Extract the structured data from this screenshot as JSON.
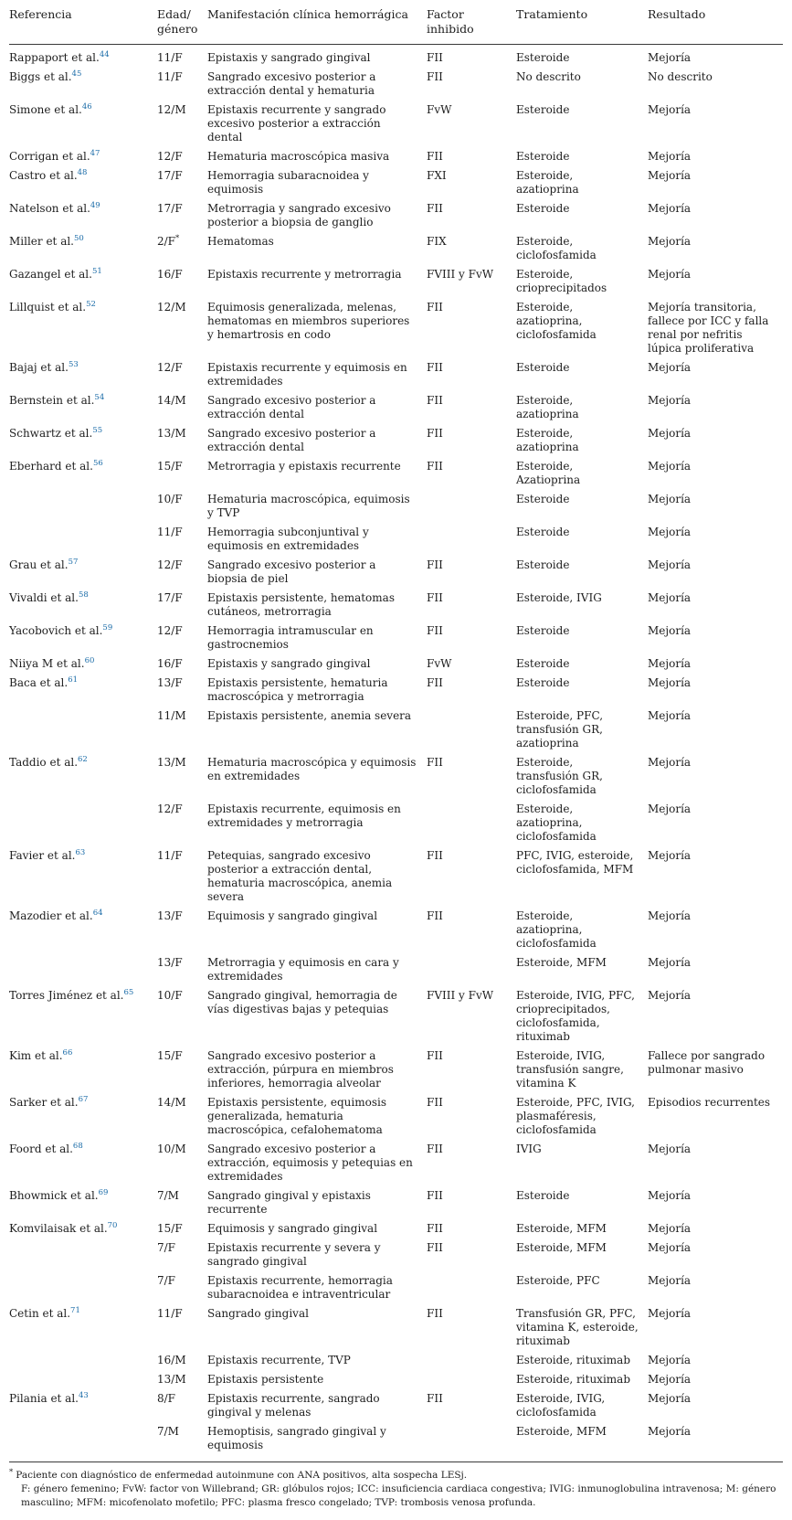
{
  "colors": {
    "citation": "#1b6ca8",
    "text": "#1d1d1d",
    "rule": "#3a3a3a",
    "background": "#ffffff"
  },
  "table": {
    "headers": [
      {
        "id": "referencia",
        "label": "Referencia"
      },
      {
        "id": "edad-genero",
        "label": "Edad/\ngénero"
      },
      {
        "id": "manifestacion",
        "label": "Manifestación clínica hemorrágica"
      },
      {
        "id": "factor-inhibido",
        "label": "Factor\ninhibido"
      },
      {
        "id": "tratamiento",
        "label": "Tratamiento"
      },
      {
        "id": "resultado",
        "label": "Resultado"
      }
    ],
    "rows": [
      {
        "ref": "Rappaport et al.",
        "sup": "44",
        "edad": "11/F",
        "manif": "Epistaxis y sangrado gingival",
        "factor": "FII",
        "trat": "Esteroide",
        "res": "Mejoría"
      },
      {
        "ref": "Biggs et al.",
        "sup": "45",
        "edad": "11/F",
        "manif": "Sangrado excesivo posterior a extracción dental y hematuria",
        "factor": "FII",
        "trat": "No descrito",
        "res": "No descrito"
      },
      {
        "ref": "Simone et al.",
        "sup": "46",
        "edad": "12/M",
        "manif": "Epistaxis recurrente y sangrado excesivo posterior a extracción dental",
        "factor": "FvW",
        "trat": "Esteroide",
        "res": "Mejoría"
      },
      {
        "ref": "Corrigan et al.",
        "sup": "47",
        "edad": "12/F",
        "manif": "Hematuria macroscópica masiva",
        "factor": "FII",
        "trat": "Esteroide",
        "res": "Mejoría"
      },
      {
        "ref": "Castro et al.",
        "sup": "48",
        "edad": "17/F",
        "manif": "Hemorragia subaracnoidea y equimosis",
        "factor": "FXI",
        "trat": "Esteroide, azatioprina",
        "res": "Mejoría"
      },
      {
        "ref": "Natelson et al.",
        "sup": "49",
        "edad": "17/F",
        "manif": "Metrorragia y sangrado excesivo posterior a biopsia de ganglio",
        "factor": "FII",
        "trat": "Esteroide",
        "res": "Mejoría"
      },
      {
        "ref": "Miller et al.",
        "sup": "50",
        "edad": "2/F",
        "edad_sup": "*",
        "manif": "Hematomas",
        "factor": "FIX",
        "trat": "Esteroide, ciclofosfamida",
        "res": "Mejoría"
      },
      {
        "ref": "Gazangel et al.",
        "sup": "51",
        "edad": "16/F",
        "manif": "Epistaxis recurrente y metrorragia",
        "factor": "FVIII y FvW",
        "trat": "Esteroide, crioprecipitados",
        "res": "Mejoría"
      },
      {
        "ref": "Lillquist et al.",
        "sup": "52",
        "edad": "12/M",
        "manif": "Equimosis generalizada, melenas, hematomas en miembros superiores y hemartrosis en codo",
        "factor": "FII",
        "trat": "Esteroide, azatioprina, ciclofosfamida",
        "res": "Mejoría transitoria, fallece por ICC y falla renal por nefritis lúpica proliferativa"
      },
      {
        "ref": "Bajaj et al.",
        "sup": "53",
        "edad": "12/F",
        "manif": "Epistaxis recurrente y equimosis en extremidades",
        "factor": "FII",
        "trat": "Esteroide",
        "res": "Mejoría"
      },
      {
        "ref": "Bernstein et al.",
        "sup": "54",
        "edad": "14/M",
        "manif": "Sangrado excesivo posterior a extracción dental",
        "factor": "FII",
        "trat": "Esteroide, azatioprina",
        "res": "Mejoría"
      },
      {
        "ref": "Schwartz et al.",
        "sup": "55",
        "edad": "13/M",
        "manif": "Sangrado excesivo posterior a extracción dental",
        "factor": "FII",
        "trat": "Esteroide, azatioprina",
        "res": "Mejoría"
      },
      {
        "ref": "Eberhard et al.",
        "sup": "56",
        "edad": "15/F",
        "manif": "Metrorragia y epistaxis recurrente",
        "factor": "FII",
        "trat": "Esteroide, Azatioprina",
        "res": "Mejoría"
      },
      {
        "edad": "10/F",
        "manif": "Hematuria macroscópica, equimosis y TVP",
        "trat": "Esteroide",
        "res": "Mejoría"
      },
      {
        "edad": "11/F",
        "manif": "Hemorragia subconjuntival y equimosis en extremidades",
        "trat": "Esteroide",
        "res": "Mejoría"
      },
      {
        "ref": "Grau et al.",
        "sup": "57",
        "edad": "12/F",
        "manif": "Sangrado excesivo posterior a biopsia de piel",
        "factor": "FII",
        "trat": "Esteroide",
        "res": "Mejoría"
      },
      {
        "ref": "Vivaldi et al.",
        "sup": "58",
        "edad": "17/F",
        "manif": "Epistaxis persistente, hematomas cutáneos, metrorragia",
        "factor": "FII",
        "trat": "Esteroide, IVIG",
        "res": "Mejoría"
      },
      {
        "ref": "Yacobovich et al.",
        "sup": "59",
        "edad": "12/F",
        "manif": "Hemorragia intramuscular en gastrocnemios",
        "factor": "FII",
        "trat": "Esteroide",
        "res": "Mejoría"
      },
      {
        "ref": "Niiya M et al.",
        "sup": "60",
        "edad": "16/F",
        "manif": "Epistaxis y sangrado gingival",
        "factor": "FvW",
        "trat": "Esteroide",
        "res": "Mejoría"
      },
      {
        "ref": "Baca et al.",
        "sup": "61",
        "edad": "13/F",
        "manif": "Epistaxis persistente, hematuria macroscópica y metrorragia",
        "factor": "FII",
        "trat": "Esteroide",
        "res": "Mejoría"
      },
      {
        "edad": "11/M",
        "manif": "Epistaxis persistente, anemia severa",
        "trat": "Esteroide, PFC, transfusión GR, azatioprina",
        "res": "Mejoría"
      },
      {
        "ref": "Taddio et al.",
        "sup": "62",
        "edad": "13/M",
        "manif": "Hematuria macroscópica y equimosis en extremidades",
        "factor": "FII",
        "trat": "Esteroide, transfusión GR, ciclofosfamida",
        "res": "Mejoría"
      },
      {
        "edad": "12/F",
        "manif": "Epistaxis recurrente, equimosis en extremidades y metrorragia",
        "trat": "Esteroide, azatioprina, ciclofosfamida",
        "res": "Mejoría"
      },
      {
        "ref": "Favier et al.",
        "sup": "63",
        "edad": "11/F",
        "manif": "Petequias, sangrado excesivo posterior a extracción dental, hematuria macroscópica, anemia severa",
        "factor": "FII",
        "trat": "PFC, IVIG, esteroide, ciclofosfamida, MFM",
        "res": "Mejoría"
      },
      {
        "ref": "Mazodier et al.",
        "sup": "64",
        "edad": "13/F",
        "manif": "Equimosis y sangrado gingival",
        "factor": "FII",
        "trat": "Esteroide, azatioprina, ciclofosfamida",
        "res": "Mejoría"
      },
      {
        "edad": "13/F",
        "manif": "Metrorragia y equimosis en cara y extremidades",
        "trat": "Esteroide, MFM",
        "res": "Mejoría"
      },
      {
        "ref": "Torres Jiménez et al.",
        "sup": "65",
        "edad": "10/F",
        "manif": "Sangrado gingival, hemorragia de vías digestivas bajas y petequias",
        "factor": "FVIII y FvW",
        "trat": "Esteroide, IVIG, PFC, crioprecipitados, ciclofosfamida, rituximab",
        "res": "Mejoría"
      },
      {
        "ref": "Kim et al.",
        "sup": "66",
        "edad": "15/F",
        "manif": "Sangrado excesivo posterior a extracción, púrpura en miembros inferiores, hemorragia alveolar",
        "factor": "FII",
        "trat": "Esteroide, IVIG, transfusión sangre, vitamina K",
        "res": "Fallece por sangrado pulmonar masivo"
      },
      {
        "ref": "Sarker et al.",
        "sup": "67",
        "edad": "14/M",
        "manif": "Epistaxis persistente, equimosis generalizada, hematuria macroscópica, cefalohematoma",
        "factor": "FII",
        "trat": "Esteroide, PFC, IVIG, plasmaféresis, ciclofosfamida",
        "res": "Episodios recurrentes"
      },
      {
        "ref": "Foord et al.",
        "sup": "68",
        "edad": "10/M",
        "manif": "Sangrado excesivo posterior a extracción, equimosis y petequias en extremidades",
        "factor": "FII",
        "trat": "IVIG",
        "res": "Mejoría"
      },
      {
        "ref": "Bhowmick et al.",
        "sup": "69",
        "edad": "7/M",
        "manif": "Sangrado gingival y epistaxis recurrente",
        "factor": "FII",
        "trat": "Esteroide",
        "res": "Mejoría"
      },
      {
        "ref": "Komvilaisak et al.",
        "sup": "70",
        "edad": "15/F",
        "manif": "Equimosis y sangrado gingival",
        "factor": "FII",
        "trat": "Esteroide, MFM",
        "res": "Mejoría"
      },
      {
        "edad": "7/F",
        "manif": "Epistaxis recurrente y severa y sangrado gingival",
        "factor": "FII",
        "trat": "Esteroide, MFM",
        "res": "Mejoría"
      },
      {
        "edad": "7/F",
        "manif": "Epistaxis recurrente, hemorragia subaracnoidea e intraventricular",
        "trat": "Esteroide, PFC",
        "res": "Mejoría"
      },
      {
        "ref": "Cetin et al.",
        "sup": "71",
        "edad": "11/F",
        "manif": "Sangrado gingival",
        "factor": "FII",
        "trat": "Transfusión GR, PFC, vitamina K, esteroide, rituximab",
        "res": "Mejoría"
      },
      {
        "edad": "16/M",
        "manif": "Epistaxis recurrente, TVP",
        "trat": "Esteroide, rituximab",
        "res": "Mejoría"
      },
      {
        "edad": "13/M",
        "manif": "Epistaxis persistente",
        "trat": "Esteroide, rituximab",
        "res": "Mejoría"
      },
      {
        "ref": "Pilania et al.",
        "sup": "43",
        "edad": "8/F",
        "manif": "Epistaxis recurrente, sangrado gingival y melenas",
        "factor": "FII",
        "trat": "Esteroide, IVIG, ciclofosfamida",
        "res": "Mejoría"
      },
      {
        "edad": "7/M",
        "manif": "Hemoptisis, sangrado gingival y equimosis",
        "trat": "Esteroide, MFM",
        "res": "Mejoría"
      }
    ]
  },
  "footnotes": {
    "marker": "*",
    "patient_note": "Paciente con diagnóstico de enfermedad autoinmune con ANA positivos, alta sospecha LESj.",
    "abbreviations": "F: género femenino; FvW: factor von Willebrand; GR: glóbulos rojos; ICC: insuficiencia cardiaca congestiva; IVIG: inmunoglobulina intravenosa; M: género masculino; MFM: micofenolato mofetilo; PFC: plasma fresco congelado; TVP: trombosis venosa profunda."
  }
}
